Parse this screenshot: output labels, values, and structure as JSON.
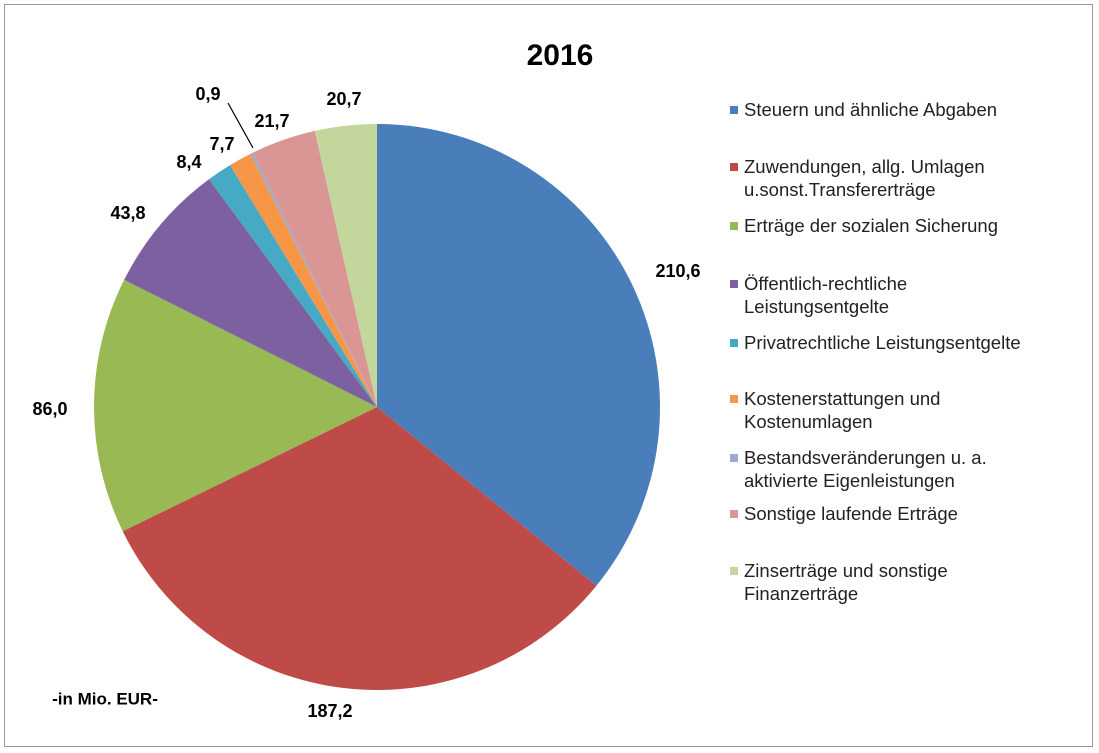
{
  "chart_data": {
    "type": "pie",
    "title": "2016",
    "note": "-in Mio. EUR-",
    "categories": [
      "Steuern und ähnliche Abgaben",
      "Zuwendungen, allg. Umlagen\nu.sonst.Transfererträge",
      "Erträge der sozialen Sicherung",
      "Öffentlich-rechtliche\nLeistungsentgelte",
      "Privatrechtliche Leistungsentgelte",
      "Kostenerstattungen und\nKostenumlagen",
      "Bestandsveränderungen u. a.\naktivierte Eigenleistungen",
      "Sonstige laufende Erträge",
      "Zinserträge und sonstige\nFinanzerträge"
    ],
    "values": [
      210.6,
      187.2,
      86.0,
      43.8,
      8.4,
      7.7,
      0.9,
      21.7,
      20.7
    ],
    "value_labels": [
      "210,6",
      "187,2",
      "86,0",
      "43,8",
      "8,4",
      "7,7",
      "0,9",
      "21,7",
      "20,7"
    ],
    "colors": [
      "#4a7ebb",
      "#be4b48",
      "#98b954",
      "#7d60a0",
      "#46aac5",
      "#f79646",
      "#9aabd3",
      "#d99694",
      "#c3d69b"
    ]
  }
}
